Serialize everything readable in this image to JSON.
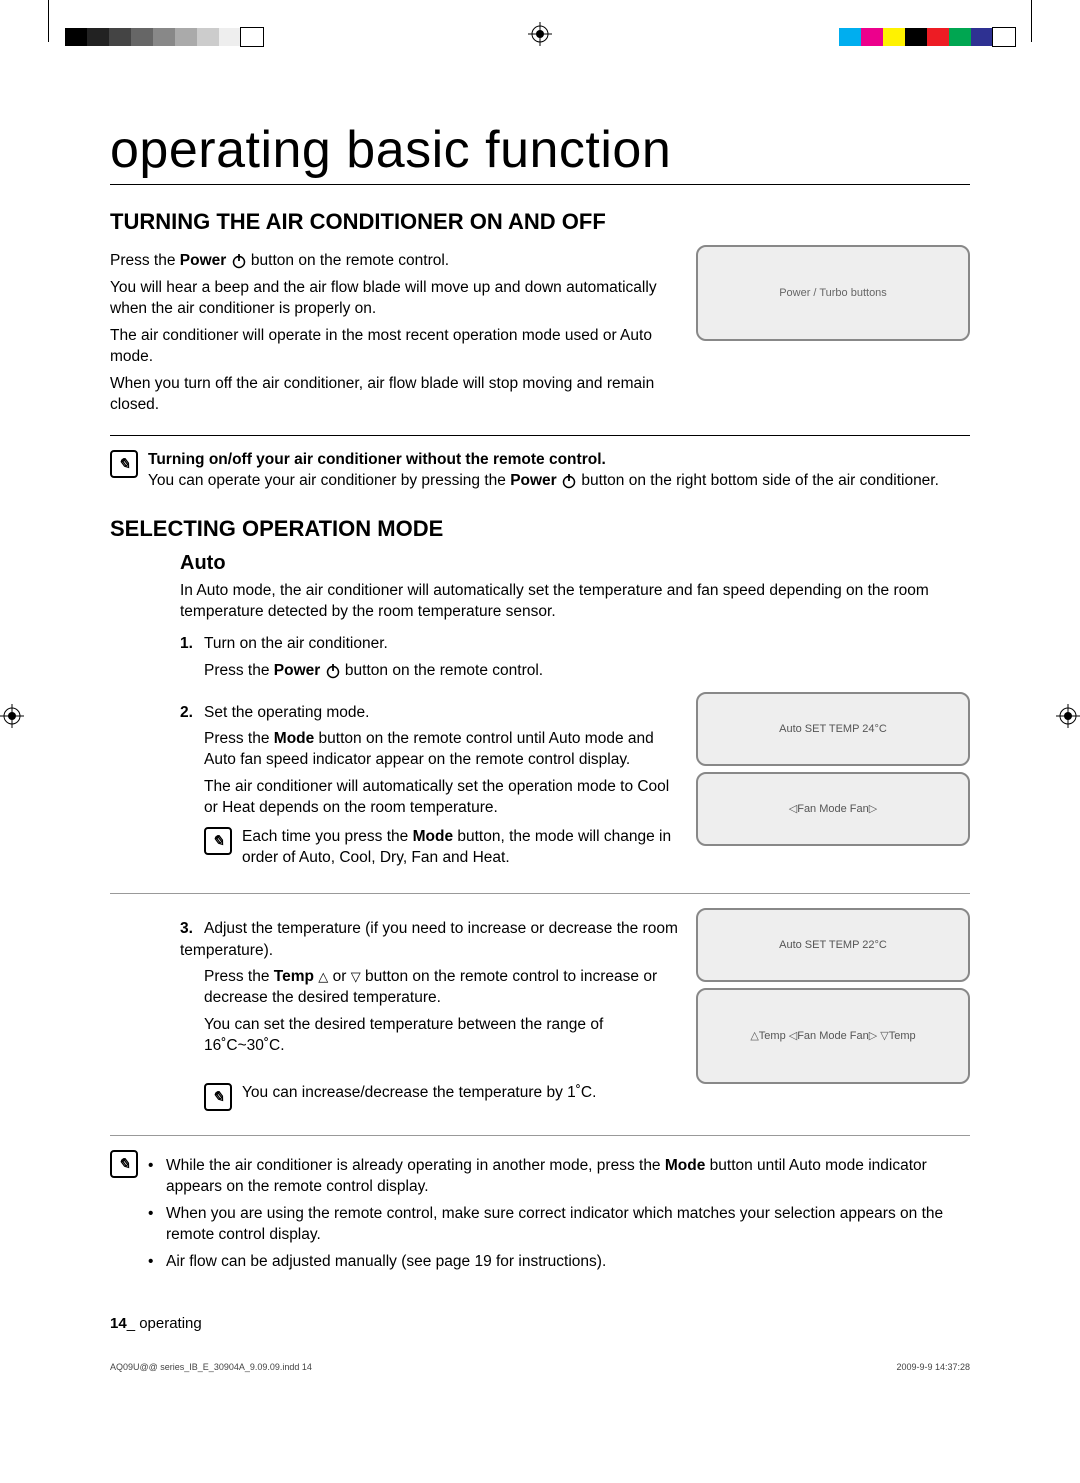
{
  "title": "operating basic function",
  "section1": {
    "heading": "TURNING THE AIR CONDITIONER ON AND OFF",
    "line1a": "Press the ",
    "line1b": "Power",
    "line1c": " button on the remote control.",
    "line2": "You will hear a beep and the air flow blade will move up and down automatically when the air conditioner is properly on.",
    "line3": "The air conditioner will operate in the most recent operation mode used or Auto mode.",
    "line4": "When you turn off the air conditioner, air flow blade will stop moving and remain closed.",
    "note_heading": "Turning on/off your air conditioner without the remote control.",
    "note_body_a": "You can operate your air conditioner by pressing the ",
    "note_body_b": "Power",
    "note_body_c": " button on the right bottom side of the air conditioner."
  },
  "section2": {
    "heading": "SELECTING OPERATION MODE",
    "sub": "Auto",
    "intro": "In Auto mode, the air conditioner will automatically set the temperature and fan speed depending on the room temperature detected by the room temperature sensor.",
    "step1": {
      "num": "1.",
      "txt": "Turn on the air conditioner.",
      "sub_a": "Press the ",
      "sub_b": "Power",
      "sub_c": " button on the remote control."
    },
    "step2": {
      "num": "2.",
      "txt": "Set the operating mode.",
      "sub1_a": "Press the ",
      "sub1_b": "Mode",
      "sub1_c": " button on the remote control until Auto mode and Auto fan speed indicator appear on the remote control display.",
      "sub2": "The air conditioner will automatically set the operation mode to Cool or Heat depends on the room temperature.",
      "note_a": "Each time you press the ",
      "note_b": "Mode",
      "note_c": " button, the mode will change in order of Auto, Cool, Dry, Fan and Heat."
    },
    "step3": {
      "num": "3.",
      "txt": "Adjust the temperature (if you need to increase or decrease the room temperature).",
      "sub1_a": "Press the ",
      "sub1_b": "Temp",
      "sub1_mid": " or ",
      "sub1_c": " button on the remote control to increase or decrease the desired temperature.",
      "sub2": "You can set the desired temperature between the range of 16˚C~30˚C.",
      "note": "You can increase/decrease the temperature by 1˚C."
    },
    "final_notes": {
      "n1_a": "While the air conditioner is already operating in another mode, press the ",
      "n1_b": "Mode",
      "n1_c": " button until Auto mode indicator appears on the remote control display.",
      "n2": "When you are using the remote control, make sure correct indicator which matches your selection appears on the remote control display.",
      "n3": "Air flow can be adjusted manually (see page 19 for instructions)."
    }
  },
  "illus_labels": {
    "fig1": "Power / Turbo buttons",
    "fig2a": "Auto  SET TEMP  24°C",
    "fig2b": "◁Fan   Mode   Fan▷",
    "fig3a": "Auto  SET TEMP  22°C",
    "fig3b": "△Temp  ◁Fan  Mode  Fan▷  ▽Temp"
  },
  "footer": {
    "page": "14",
    "label": "_ operating"
  },
  "meta": {
    "file": "AQ09U@@ series_IB_E_30904A_9.09.09.indd   14",
    "date": "2009-9-9   14:37:28"
  },
  "colorbars": {
    "left": [
      "#000",
      "#222",
      "#444",
      "#666",
      "#888",
      "#aaa",
      "#ccc",
      "#eee",
      "#fff"
    ],
    "right": [
      "#00aeef",
      "#ec008c",
      "#fff200",
      "#000",
      "#ed1c24",
      "#00a651",
      "#2e3192",
      "#fff"
    ]
  }
}
